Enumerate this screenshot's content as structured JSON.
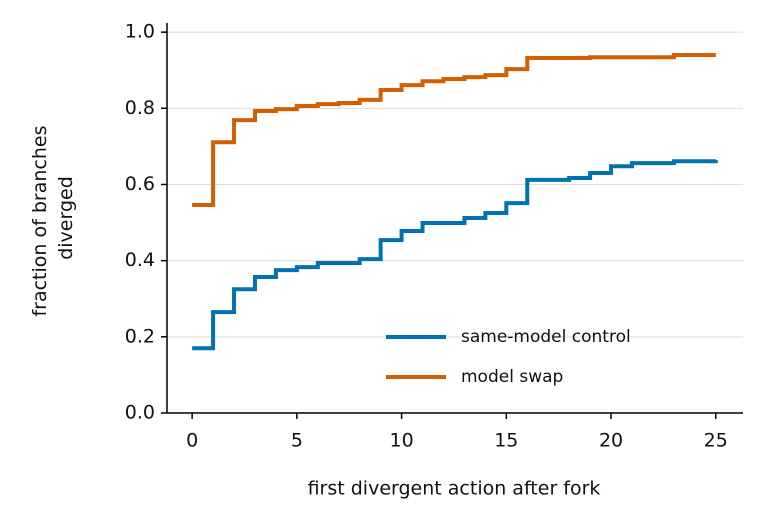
{
  "chart_data": {
    "type": "step",
    "xlabel": "first divergent action after fork",
    "ylabel": [
      "fraction of branches",
      "diverged"
    ],
    "x": [
      0,
      1,
      2,
      3,
      4,
      5,
      6,
      7,
      8,
      9,
      10,
      11,
      12,
      13,
      14,
      15,
      16,
      17,
      18,
      19,
      20,
      21,
      22,
      23,
      24,
      25
    ],
    "series": [
      {
        "name": "same-model control",
        "color": "#0072b2",
        "values": [
          0.17,
          0.265,
          0.325,
          0.357,
          0.375,
          0.383,
          0.394,
          0.394,
          0.404,
          0.454,
          0.478,
          0.499,
          0.499,
          0.512,
          0.525,
          0.551,
          0.612,
          0.612,
          0.617,
          0.63,
          0.648,
          0.656,
          0.656,
          0.661,
          0.661,
          0.664
        ]
      },
      {
        "name": "model swap",
        "color": "#d55e00",
        "values": [
          0.546,
          0.711,
          0.769,
          0.793,
          0.798,
          0.806,
          0.811,
          0.814,
          0.822,
          0.848,
          0.861,
          0.871,
          0.877,
          0.882,
          0.887,
          0.903,
          0.932,
          0.932,
          0.932,
          0.934,
          0.934,
          0.934,
          0.934,
          0.94,
          0.94,
          0.94
        ]
      }
    ],
    "xlim": [
      -1.2,
      26.3
    ],
    "ylim": [
      0,
      1.024
    ],
    "xticks": [
      0,
      5,
      10,
      15,
      20,
      25
    ],
    "yticks": [
      {
        "value": 0,
        "label": "0.0"
      },
      {
        "value": 0.2,
        "label": "0.2"
      },
      {
        "value": 0.4,
        "label": "0.4"
      },
      {
        "value": 0.6,
        "label": "0.6"
      },
      {
        "value": 0.8,
        "label": "0.8"
      },
      {
        "value": 1,
        "label": "1.0"
      }
    ],
    "grid": true,
    "legend": "lower right"
  }
}
